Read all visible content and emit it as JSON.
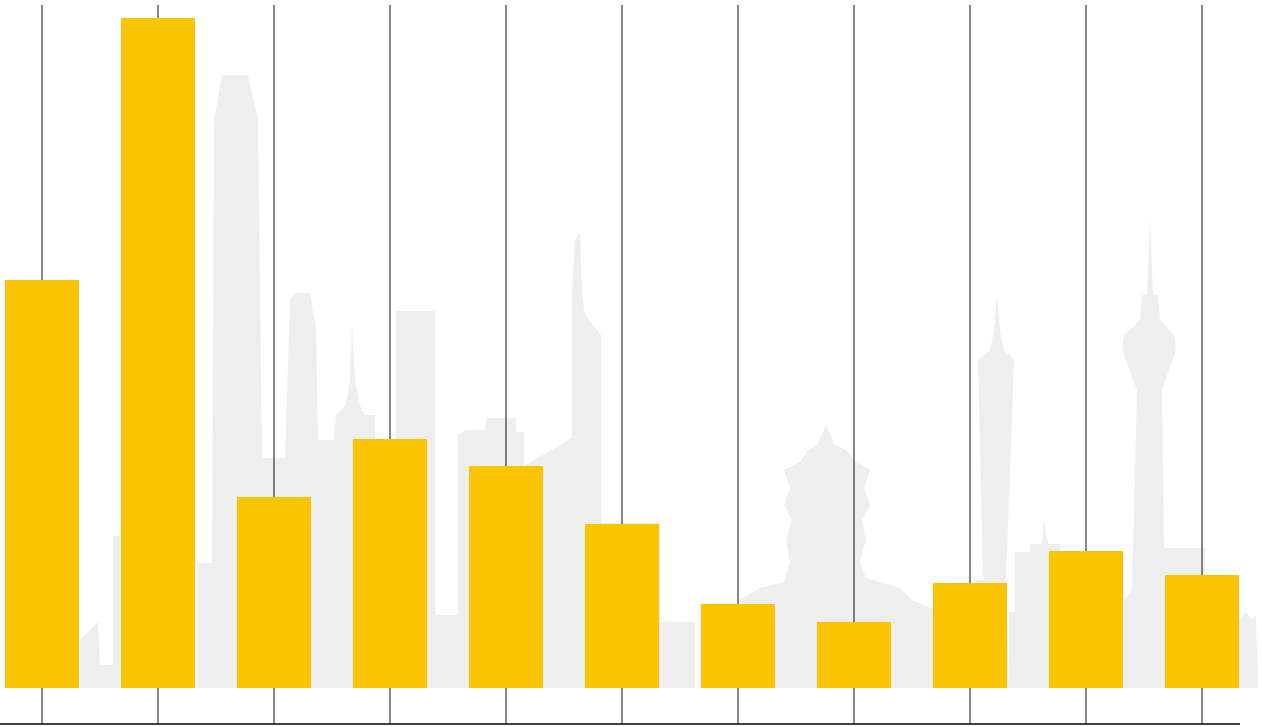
{
  "chart_data": {
    "type": "bar",
    "categories": [
      null,
      null,
      null,
      null,
      null,
      null,
      null,
      null,
      null,
      null,
      null
    ],
    "values": [
      408,
      670,
      191,
      249,
      222,
      164,
      84,
      66,
      105,
      137,
      113
    ],
    "color": "#f8c500",
    "ylim": [
      0,
      670
    ]
  }
}
